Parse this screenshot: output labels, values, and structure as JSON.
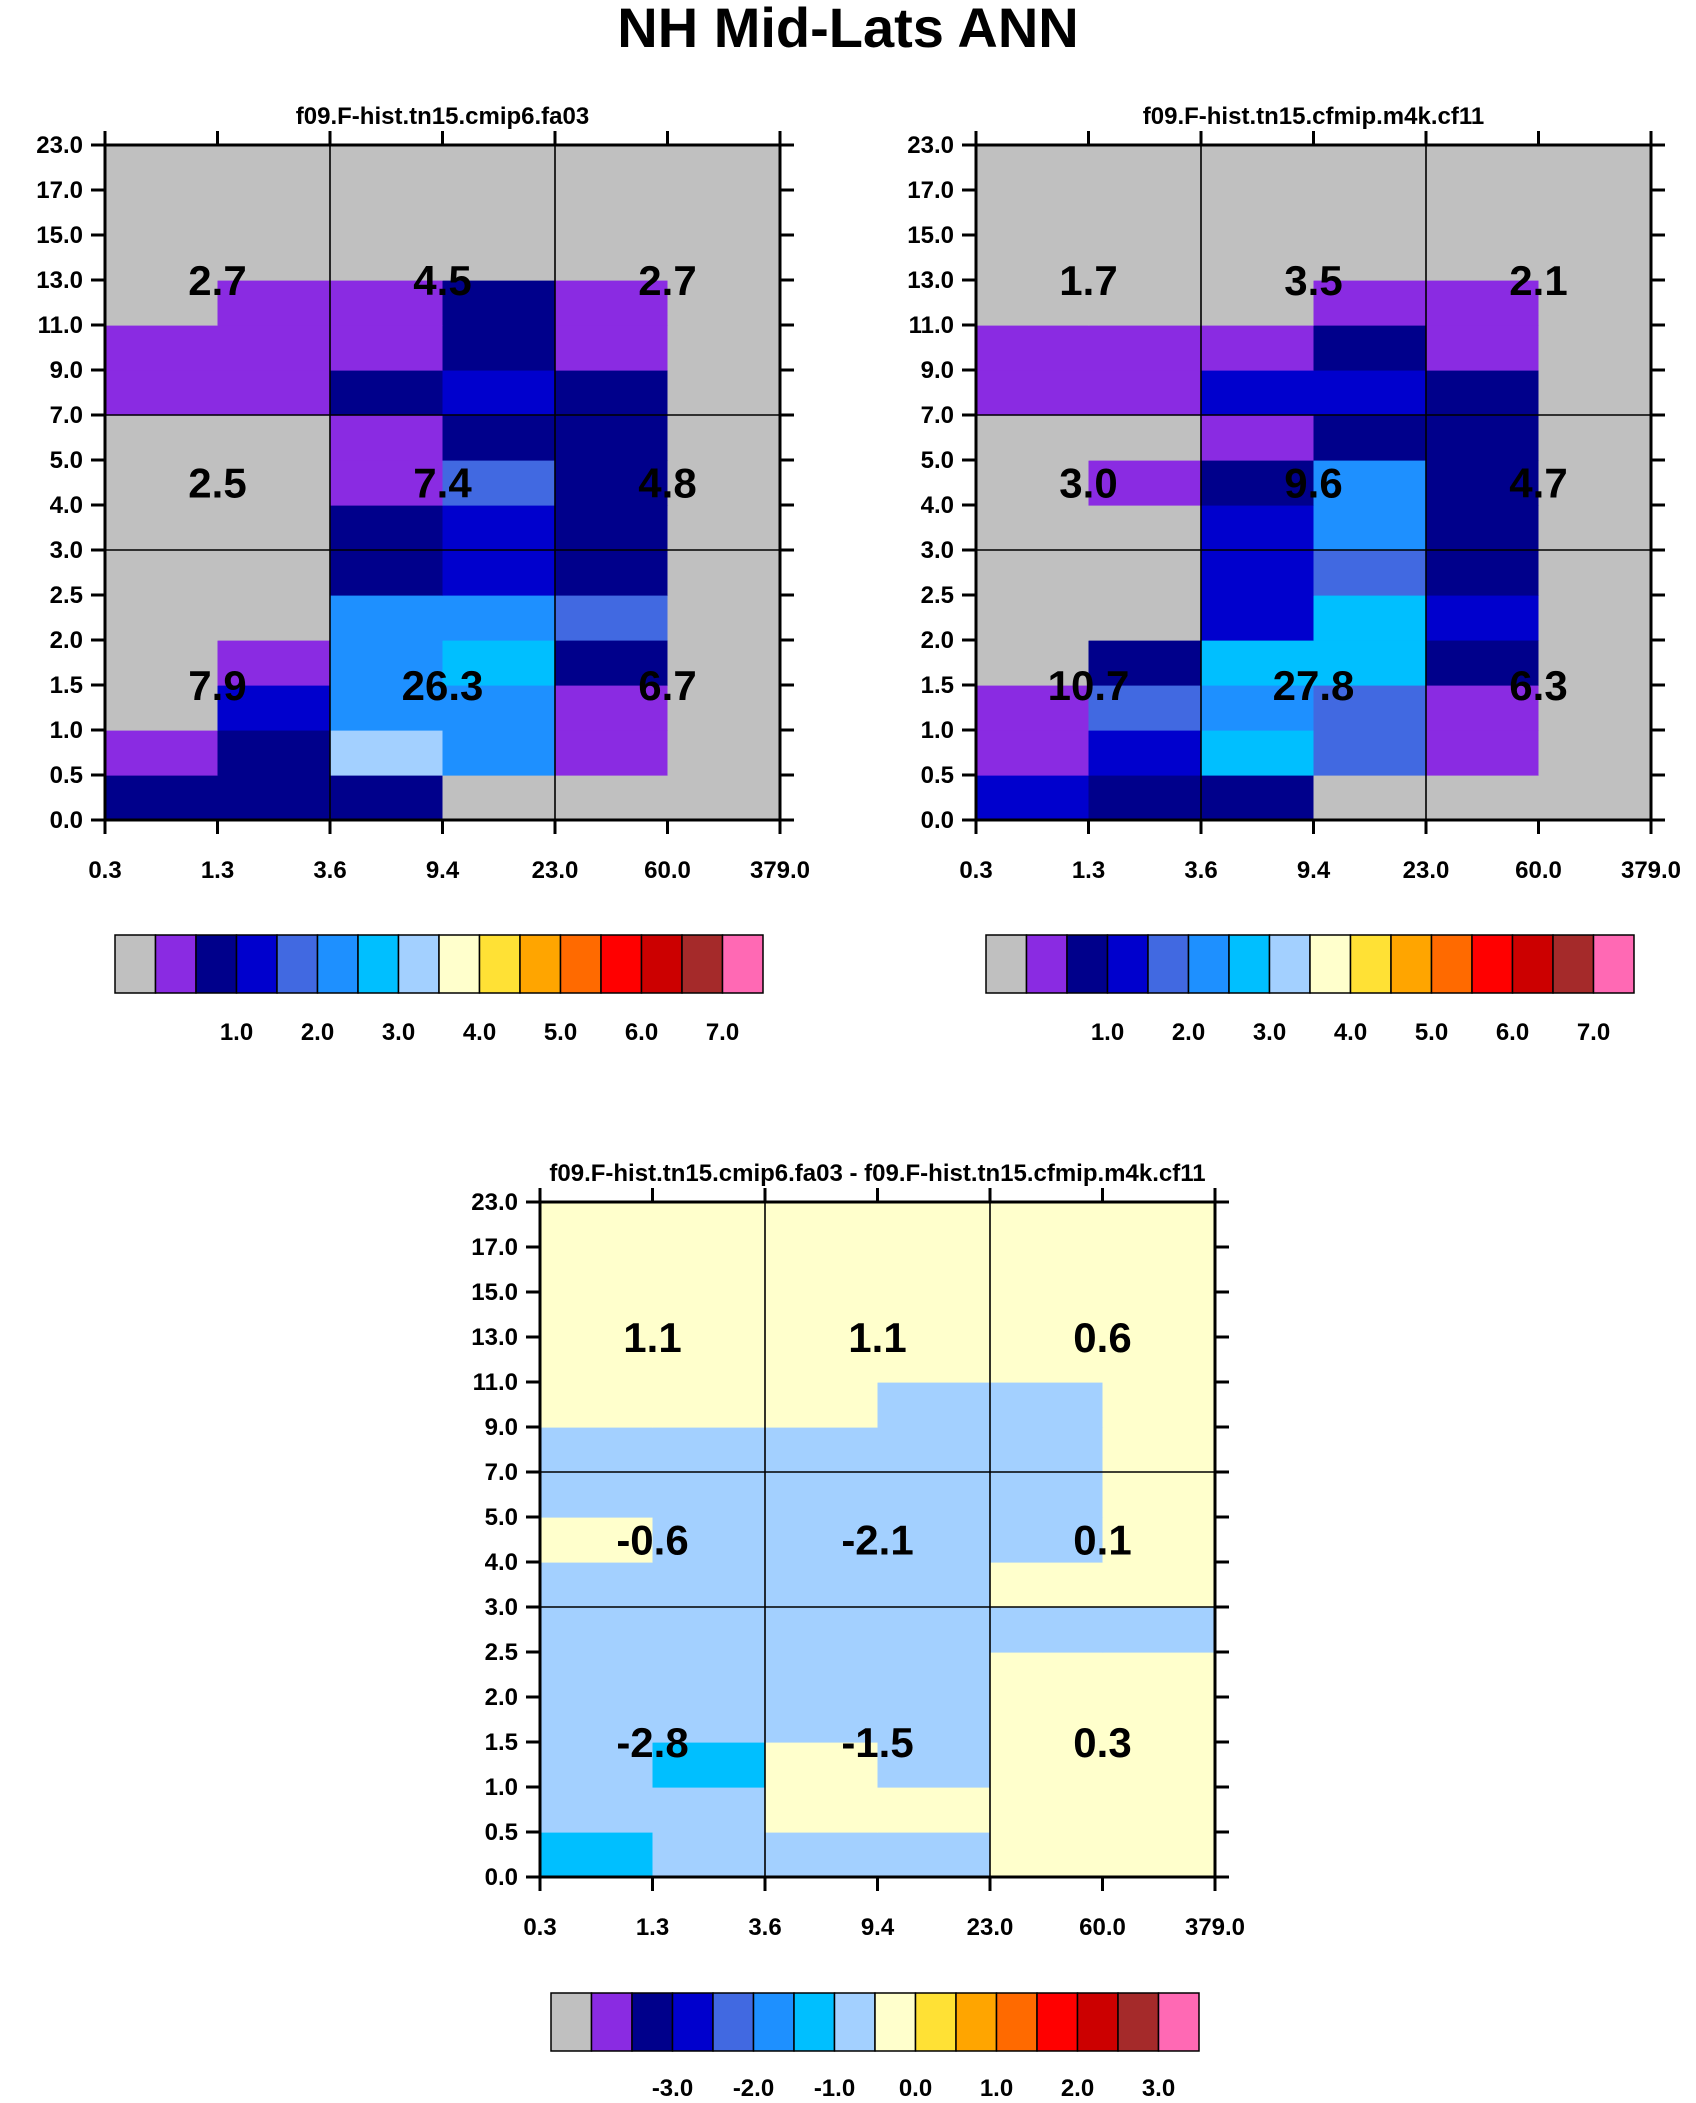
{
  "title": "NH Mid-Lats ANN",
  "colormaps": {
    "main": [
      "#c0c0c0",
      "#8a2be2",
      "#00008b",
      "#0000cd",
      "#4169e1",
      "#1e90ff",
      "#00bfff",
      "#a3d0ff",
      "#ffffcc",
      "#ffe135",
      "#ffa500",
      "#ff6a00",
      "#ff0000",
      "#cc0000",
      "#a52a2a",
      "#ff69b4"
    ],
    "diff": [
      "#c0c0c0",
      "#8a2be2",
      "#00008b",
      "#0000cd",
      "#4169e1",
      "#1e90ff",
      "#00bfff",
      "#a3d0ff",
      "#ffffcc",
      "#ffe135",
      "#ffa500",
      "#ff6a00",
      "#ff0000",
      "#cc0000",
      "#a52a2a",
      "#ff69b4"
    ]
  },
  "chart_data": [
    {
      "type": "heatmap",
      "title": "f09.F-hist.tn15.cmip6.fa03",
      "x_ticks": [
        "0.3",
        "1.3",
        "3.6",
        "9.4",
        "23.0",
        "60.0",
        "379.0"
      ],
      "y_ticks": [
        "0.0",
        "0.5",
        "1.0",
        "1.5",
        "2.0",
        "2.5",
        "3.0",
        "4.0",
        "5.0",
        "7.0",
        "9.0",
        "11.0",
        "13.0",
        "15.0",
        "17.0",
        "23.0"
      ],
      "cell_color_index_rows_bottom_to_top": [
        [
          2,
          2,
          2,
          0,
          0,
          0
        ],
        [
          1,
          2,
          7,
          5,
          1,
          0
        ],
        [
          0,
          3,
          5,
          5,
          1,
          0
        ],
        [
          0,
          1,
          5,
          6,
          2,
          0
        ],
        [
          0,
          0,
          5,
          5,
          4,
          0
        ],
        [
          0,
          0,
          2,
          3,
          2,
          0
        ],
        [
          0,
          0,
          2,
          3,
          2,
          0
        ],
        [
          0,
          0,
          1,
          4,
          2,
          0
        ],
        [
          0,
          0,
          1,
          2,
          2,
          0
        ],
        [
          1,
          1,
          2,
          3,
          2,
          0
        ],
        [
          1,
          1,
          1,
          2,
          1,
          0
        ],
        [
          0,
          1,
          1,
          2,
          1,
          0
        ],
        [
          0,
          0,
          0,
          0,
          0,
          0
        ],
        [
          0,
          0,
          0,
          0,
          0,
          0
        ],
        [
          0,
          0,
          0,
          0,
          0,
          0
        ]
      ],
      "section_values": {
        "top": [
          "2.7",
          "4.5",
          "2.7"
        ],
        "middle": [
          "2.5",
          "7.4",
          "4.8"
        ],
        "bottom": [
          "7.9",
          "26.3",
          "6.7"
        ]
      },
      "colorbar": {
        "labels": [
          "1.0",
          "2.0",
          "3.0",
          "4.0",
          "5.0",
          "6.0",
          "7.0"
        ],
        "palette": "main"
      }
    },
    {
      "type": "heatmap",
      "title": "f09.F-hist.tn15.cfmip.m4k.cf11",
      "x_ticks": [
        "0.3",
        "1.3",
        "3.6",
        "9.4",
        "23.0",
        "60.0",
        "379.0"
      ],
      "y_ticks": [
        "0.0",
        "0.5",
        "1.0",
        "1.5",
        "2.0",
        "2.5",
        "3.0",
        "4.0",
        "5.0",
        "7.0",
        "9.0",
        "11.0",
        "13.0",
        "15.0",
        "17.0",
        "23.0"
      ],
      "cell_color_index_rows_bottom_to_top": [
        [
          3,
          2,
          2,
          0,
          0,
          0
        ],
        [
          1,
          3,
          6,
          4,
          1,
          0
        ],
        [
          1,
          4,
          5,
          4,
          1,
          0
        ],
        [
          0,
          2,
          6,
          6,
          2,
          0
        ],
        [
          0,
          0,
          3,
          6,
          3,
          0
        ],
        [
          0,
          0,
          3,
          4,
          2,
          0
        ],
        [
          0,
          0,
          3,
          5,
          2,
          0
        ],
        [
          0,
          1,
          2,
          5,
          2,
          0
        ],
        [
          0,
          0,
          1,
          2,
          2,
          0
        ],
        [
          1,
          1,
          3,
          3,
          2,
          0
        ],
        [
          1,
          1,
          1,
          2,
          1,
          0
        ],
        [
          0,
          0,
          0,
          1,
          1,
          0
        ],
        [
          0,
          0,
          0,
          0,
          0,
          0
        ],
        [
          0,
          0,
          0,
          0,
          0,
          0
        ],
        [
          0,
          0,
          0,
          0,
          0,
          0
        ]
      ],
      "section_values": {
        "top": [
          "1.7",
          "3.5",
          "2.1"
        ],
        "middle": [
          "3.0",
          "9.6",
          "4.7"
        ],
        "bottom": [
          "10.7",
          "27.8",
          "6.3"
        ]
      },
      "colorbar": {
        "labels": [
          "1.0",
          "2.0",
          "3.0",
          "4.0",
          "5.0",
          "6.0",
          "7.0"
        ],
        "palette": "main"
      }
    },
    {
      "type": "heatmap",
      "title": "f09.F-hist.tn15.cmip6.fa03 - f09.F-hist.tn15.cfmip.m4k.cf11",
      "x_ticks": [
        "0.3",
        "1.3",
        "3.6",
        "9.4",
        "23.0",
        "60.0",
        "379.0"
      ],
      "y_ticks": [
        "0.0",
        "0.5",
        "1.0",
        "1.5",
        "2.0",
        "2.5",
        "3.0",
        "4.0",
        "5.0",
        "7.0",
        "9.0",
        "11.0",
        "13.0",
        "15.0",
        "17.0",
        "23.0"
      ],
      "cell_color_index_rows_bottom_to_top": [
        [
          6,
          7,
          7,
          7,
          8,
          8
        ],
        [
          7,
          7,
          8,
          8,
          8,
          8
        ],
        [
          7,
          6,
          8,
          7,
          8,
          8
        ],
        [
          7,
          7,
          7,
          7,
          8,
          8
        ],
        [
          7,
          7,
          7,
          7,
          8,
          8
        ],
        [
          7,
          7,
          7,
          7,
          7,
          7
        ],
        [
          7,
          7,
          7,
          7,
          8,
          8
        ],
        [
          8,
          7,
          7,
          7,
          7,
          8
        ],
        [
          7,
          7,
          7,
          7,
          7,
          8
        ],
        [
          7,
          7,
          7,
          7,
          7,
          8
        ],
        [
          8,
          8,
          8,
          7,
          7,
          8
        ],
        [
          8,
          8,
          8,
          8,
          8,
          8
        ],
        [
          8,
          8,
          8,
          8,
          8,
          8
        ],
        [
          8,
          8,
          8,
          8,
          8,
          8
        ],
        [
          8,
          8,
          8,
          8,
          8,
          8
        ]
      ],
      "section_values": {
        "top": [
          "1.1",
          "1.1",
          "0.6"
        ],
        "middle": [
          "-0.6",
          "-2.1",
          "0.1"
        ],
        "bottom": [
          "-2.8",
          "-1.5",
          "0.3"
        ]
      },
      "colorbar": {
        "labels": [
          "-3.0",
          "-2.0",
          "-1.0",
          "0.0",
          "1.0",
          "2.0",
          "3.0"
        ],
        "palette": "diff"
      }
    }
  ]
}
